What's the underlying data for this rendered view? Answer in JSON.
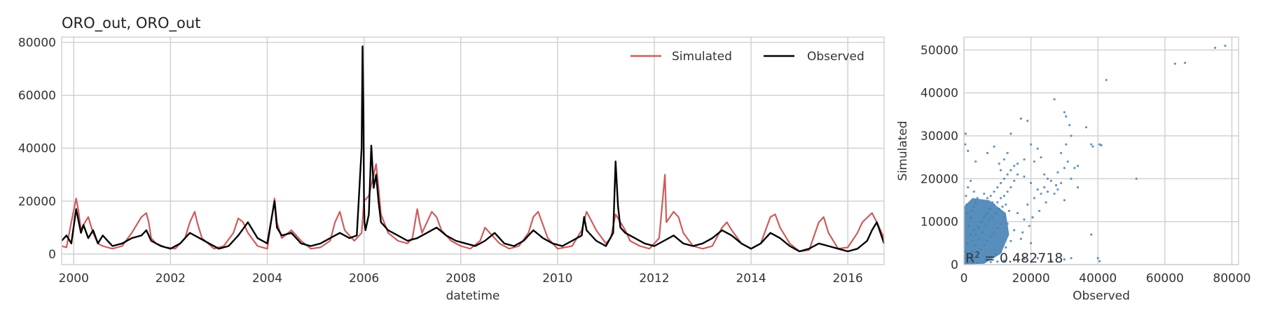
{
  "colors": {
    "simulated": "#cd5c5c",
    "observed": "#000000",
    "scatter": "#4682b4",
    "grid": "#cfcfcf"
  },
  "chart_data": [
    {
      "type": "line",
      "title": "ORO_out, ORO_out",
      "xlabel": "datetime",
      "ylabel": "",
      "xlim": [
        1999.75,
        2016.75
      ],
      "ylim": [
        -4000,
        82000
      ],
      "xticks": [
        2000,
        2002,
        2004,
        2006,
        2008,
        2010,
        2012,
        2014,
        2016
      ],
      "xtick_labels": [
        "2000",
        "2002",
        "2004",
        "2006",
        "2008",
        "2010",
        "2012",
        "2014",
        "2016"
      ],
      "yticks": [
        0,
        20000,
        40000,
        60000,
        80000
      ],
      "ytick_labels": [
        "0",
        "20000",
        "40000",
        "60000",
        "80000"
      ],
      "grid": true,
      "legend": {
        "placement": "top-right",
        "columns": 2
      },
      "series": [
        {
          "name": "Simulated",
          "x": [
            1999.75,
            1999.85,
            1999.95,
            2000.05,
            2000.1,
            2000.15,
            2000.2,
            2000.3,
            2000.4,
            2000.5,
            2000.6,
            2000.8,
            2001.0,
            2001.2,
            2001.4,
            2001.5,
            2001.55,
            2001.6,
            2001.7,
            2001.9,
            2002.1,
            2002.3,
            2002.4,
            2002.5,
            2002.55,
            2002.65,
            2002.9,
            2003.1,
            2003.3,
            2003.4,
            2003.5,
            2003.6,
            2003.8,
            2004.0,
            2004.15,
            2004.2,
            2004.3,
            2004.5,
            2004.7,
            2004.9,
            2005.1,
            2005.3,
            2005.4,
            2005.5,
            2005.6,
            2005.8,
            2005.95,
            2006.0,
            2006.1,
            2006.2,
            2006.25,
            2006.3,
            2006.35,
            2006.5,
            2006.7,
            2006.9,
            2007.0,
            2007.1,
            2007.15,
            2007.2,
            2007.4,
            2007.5,
            2007.6,
            2007.8,
            2008.0,
            2008.2,
            2008.4,
            2008.5,
            2008.6,
            2008.8,
            2009.0,
            2009.2,
            2009.4,
            2009.5,
            2009.6,
            2009.8,
            2010.0,
            2010.3,
            2010.5,
            2010.6,
            2010.8,
            2011.0,
            2011.1,
            2011.2,
            2011.3,
            2011.4,
            2011.5,
            2011.7,
            2011.9,
            2012.1,
            2012.2,
            2012.22,
            2012.25,
            2012.4,
            2012.5,
            2012.6,
            2012.8,
            2013.0,
            2013.2,
            2013.4,
            2013.5,
            2013.6,
            2013.8,
            2014.0,
            2014.2,
            2014.4,
            2014.5,
            2014.6,
            2014.8,
            2015.0,
            2015.2,
            2015.4,
            2015.5,
            2015.6,
            2015.8,
            2016.0,
            2016.2,
            2016.3,
            2016.5,
            2016.6,
            2016.75
          ],
          "values": [
            3000,
            2500,
            12000,
            21000,
            16000,
            9000,
            11000,
            14000,
            8000,
            4000,
            3000,
            2000,
            3000,
            8000,
            14000,
            15500,
            12000,
            6000,
            4000,
            2500,
            2000,
            6000,
            12000,
            16000,
            12000,
            6000,
            2000,
            3000,
            8000,
            13500,
            12000,
            8000,
            3000,
            2000,
            21000,
            12000,
            6000,
            9000,
            5000,
            2000,
            2500,
            5000,
            12000,
            16000,
            9000,
            5000,
            8000,
            20000,
            22000,
            30000,
            34000,
            25000,
            15000,
            8000,
            5000,
            4000,
            6000,
            17000,
            12000,
            8000,
            16000,
            14000,
            9000,
            5000,
            3000,
            2000,
            5000,
            10000,
            8000,
            4000,
            2000,
            3000,
            8000,
            14000,
            16000,
            6000,
            2000,
            3000,
            9000,
            16000,
            9000,
            4000,
            6000,
            15000,
            12000,
            9000,
            5000,
            3000,
            2000,
            6000,
            26000,
            30000,
            12000,
            16000,
            14000,
            8000,
            3000,
            2000,
            3000,
            10000,
            12000,
            9000,
            4000,
            2000,
            4000,
            14000,
            15000,
            10000,
            4000,
            1000,
            1500,
            12000,
            14000,
            8000,
            2000,
            2500,
            8000,
            12000,
            15500,
            12000,
            6000
          ]
        },
        {
          "name": "Observed",
          "x": [
            1999.75,
            1999.85,
            1999.95,
            2000.05,
            2000.15,
            2000.2,
            2000.3,
            2000.4,
            2000.5,
            2000.6,
            2000.8,
            2001.0,
            2001.2,
            2001.4,
            2001.5,
            2001.6,
            2001.8,
            2002.0,
            2002.2,
            2002.4,
            2002.6,
            2002.8,
            2003.0,
            2003.2,
            2003.4,
            2003.6,
            2003.8,
            2004.0,
            2004.15,
            2004.2,
            2004.3,
            2004.5,
            2004.7,
            2004.9,
            2005.1,
            2005.3,
            2005.5,
            2005.7,
            2005.85,
            2005.95,
            2005.97,
            2005.99,
            2006.0,
            2006.01,
            2006.03,
            2006.1,
            2006.15,
            2006.2,
            2006.25,
            2006.3,
            2006.35,
            2006.5,
            2006.7,
            2006.9,
            2007.1,
            2007.3,
            2007.5,
            2007.7,
            2007.9,
            2008.1,
            2008.3,
            2008.5,
            2008.7,
            2008.9,
            2009.1,
            2009.3,
            2009.5,
            2009.7,
            2009.9,
            2010.1,
            2010.3,
            2010.5,
            2010.55,
            2010.6,
            2010.8,
            2011.0,
            2011.15,
            2011.2,
            2011.25,
            2011.3,
            2011.4,
            2011.6,
            2011.8,
            2012.0,
            2012.2,
            2012.4,
            2012.6,
            2012.8,
            2013.0,
            2013.2,
            2013.4,
            2013.6,
            2013.8,
            2014.0,
            2014.2,
            2014.4,
            2014.6,
            2014.8,
            2015.0,
            2015.2,
            2015.4,
            2015.6,
            2015.8,
            2016.0,
            2016.2,
            2016.4,
            2016.5,
            2016.6,
            2016.75
          ],
          "values": [
            5000,
            7000,
            4000,
            17000,
            8000,
            11000,
            6000,
            9000,
            4000,
            7000,
            3000,
            4000,
            6000,
            7000,
            9000,
            5000,
            3000,
            2000,
            4000,
            8000,
            6000,
            4000,
            2000,
            3000,
            7000,
            12000,
            6000,
            4000,
            20000,
            10000,
            7000,
            8000,
            4000,
            3000,
            4000,
            6000,
            8000,
            6000,
            7000,
            40000,
            78500,
            50000,
            20000,
            12000,
            9000,
            15000,
            41000,
            25000,
            30000,
            20000,
            12000,
            9000,
            7000,
            5000,
            6000,
            8000,
            10000,
            7000,
            5000,
            4000,
            3000,
            5000,
            8000,
            4000,
            3000,
            5000,
            9000,
            6000,
            4000,
            3000,
            5000,
            7000,
            14000,
            9000,
            5000,
            3000,
            8000,
            35000,
            18000,
            10000,
            8000,
            6000,
            4000,
            3000,
            5000,
            7000,
            4000,
            3000,
            4000,
            6000,
            9000,
            7000,
            4000,
            2000,
            4000,
            8000,
            6000,
            3000,
            1000,
            2000,
            4000,
            3000,
            2000,
            1000,
            2000,
            5000,
            9000,
            12000,
            4000
          ]
        }
      ]
    },
    {
      "type": "scatter",
      "title": "",
      "xlabel": "Observed",
      "ylabel": "Simulated",
      "xlim": [
        0,
        82000
      ],
      "ylim": [
        0,
        53000
      ],
      "xticks": [
        0,
        20000,
        40000,
        60000,
        80000
      ],
      "xtick_labels": [
        "0",
        "20000",
        "40000",
        "60000",
        "80000"
      ],
      "yticks": [
        0,
        10000,
        20000,
        30000,
        40000,
        50000
      ],
      "ytick_labels": [
        "0",
        "10000",
        "20000",
        "30000",
        "40000",
        "50000"
      ],
      "grid": true,
      "annotation": "R$^2$ = 0.482718",
      "annotation_text": "0.482718",
      "points": [
        [
          500,
          30500
        ],
        [
          400,
          28000
        ],
        [
          1200,
          26500
        ],
        [
          3500,
          24000
        ],
        [
          7000,
          26000
        ],
        [
          9000,
          27500
        ],
        [
          10500,
          23500
        ],
        [
          11000,
          22000
        ],
        [
          12000,
          24500
        ],
        [
          13000,
          26000
        ],
        [
          14000,
          30500
        ],
        [
          17000,
          34000
        ],
        [
          19000,
          33500
        ],
        [
          20000,
          28000
        ],
        [
          22000,
          27000
        ],
        [
          23000,
          25000
        ],
        [
          27000,
          38500
        ],
        [
          30000,
          35500
        ],
        [
          30500,
          34500
        ],
        [
          31500,
          32500
        ],
        [
          30500,
          28000
        ],
        [
          32000,
          30000
        ],
        [
          29000,
          26000
        ],
        [
          31000,
          24000
        ],
        [
          30000,
          22500
        ],
        [
          33000,
          22500
        ],
        [
          34000,
          23000
        ],
        [
          28000,
          21500
        ],
        [
          25000,
          20000
        ],
        [
          24000,
          18000
        ],
        [
          22000,
          17500
        ],
        [
          20000,
          19000
        ],
        [
          18000,
          20500
        ],
        [
          16000,
          21000
        ],
        [
          15000,
          19500
        ],
        [
          14000,
          18000
        ],
        [
          13000,
          17000
        ],
        [
          12000,
          16000
        ],
        [
          11000,
          15500
        ],
        [
          10000,
          14500
        ],
        [
          9000,
          14000
        ],
        [
          8000,
          13000
        ],
        [
          7000,
          12000
        ],
        [
          6000,
          11000
        ],
        [
          5000,
          10000
        ],
        [
          4000,
          9000
        ],
        [
          3000,
          8000
        ],
        [
          2000,
          7000
        ],
        [
          1000,
          5000
        ],
        [
          500,
          3000
        ],
        [
          300,
          1500
        ],
        [
          1500,
          2000
        ],
        [
          2500,
          3000
        ],
        [
          3500,
          4500
        ],
        [
          4500,
          6000
        ],
        [
          5500,
          7500
        ],
        [
          6500,
          9000
        ],
        [
          7500,
          10500
        ],
        [
          8500,
          11000
        ],
        [
          9500,
          12000
        ],
        [
          10500,
          13000
        ],
        [
          11500,
          13500
        ],
        [
          12500,
          14000
        ],
        [
          13500,
          12500
        ],
        [
          12000,
          11000
        ],
        [
          11000,
          9500
        ],
        [
          10000,
          8500
        ],
        [
          9000,
          7500
        ],
        [
          8000,
          6500
        ],
        [
          7000,
          5500
        ],
        [
          6000,
          4500
        ],
        [
          5000,
          3500
        ],
        [
          4000,
          2500
        ],
        [
          3000,
          1500
        ],
        [
          2000,
          800
        ],
        [
          1000,
          400
        ],
        [
          2500,
          5500
        ],
        [
          3500,
          7000
        ],
        [
          4500,
          8500
        ],
        [
          5500,
          10000
        ],
        [
          6500,
          11500
        ],
        [
          7500,
          13000
        ],
        [
          8500,
          14500
        ],
        [
          1500,
          9000
        ],
        [
          2000,
          11000
        ],
        [
          2500,
          12500
        ],
        [
          3000,
          13500
        ],
        [
          3500,
          14500
        ],
        [
          4000,
          15500
        ],
        [
          1000,
          12000
        ],
        [
          800,
          14000
        ],
        [
          600,
          16000
        ],
        [
          1200,
          18000
        ],
        [
          2000,
          19500
        ],
        [
          3000,
          17000
        ],
        [
          6000,
          16500
        ],
        [
          7000,
          15500
        ],
        [
          8000,
          16000
        ],
        [
          9000,
          17000
        ],
        [
          10000,
          18000
        ],
        [
          11000,
          19000
        ],
        [
          12000,
          20000
        ],
        [
          13000,
          21000
        ],
        [
          14000,
          22000
        ],
        [
          15000,
          23000
        ],
        [
          16000,
          23500
        ],
        [
          18000,
          24500
        ],
        [
          21000,
          24000
        ],
        [
          24000,
          21000
        ],
        [
          26000,
          19500
        ],
        [
          28000,
          17500
        ],
        [
          27000,
          16500
        ],
        [
          30000,
          15000
        ],
        [
          32000,
          20000
        ],
        [
          34000,
          18000
        ],
        [
          36500,
          32000
        ],
        [
          38000,
          28000
        ],
        [
          38500,
          27500
        ],
        [
          40500,
          28000
        ],
        [
          41000,
          27800
        ],
        [
          40000,
          1500
        ],
        [
          40500,
          800
        ],
        [
          38000,
          7000
        ],
        [
          32000,
          1500
        ],
        [
          30000,
          1200
        ],
        [
          26000,
          1000
        ],
        [
          22000,
          1500
        ],
        [
          18000,
          1300
        ],
        [
          15000,
          1000
        ],
        [
          12000,
          900
        ],
        [
          10000,
          700
        ],
        [
          8000,
          600
        ],
        [
          6000,
          500
        ],
        [
          4000,
          400
        ],
        [
          51500,
          20000
        ],
        [
          42500,
          43000
        ],
        [
          63000,
          46800
        ],
        [
          66000,
          47000
        ],
        [
          75000,
          50500
        ],
        [
          78000,
          51000
        ],
        [
          20000,
          5000
        ],
        [
          17000,
          6000
        ],
        [
          15000,
          8000
        ],
        [
          13000,
          9500
        ],
        [
          18000,
          10500
        ],
        [
          16000,
          12000
        ],
        [
          19000,
          14000
        ],
        [
          21000,
          15500
        ],
        [
          23000,
          16500
        ],
        [
          25000,
          17000
        ],
        [
          27500,
          18500
        ],
        [
          29000,
          19000
        ],
        [
          24500,
          14500
        ],
        [
          22500,
          12500
        ],
        [
          20500,
          11000
        ],
        [
          19500,
          9000
        ],
        [
          17500,
          7500
        ],
        [
          14000,
          5500
        ],
        [
          12500,
          4000
        ],
        [
          11000,
          3000
        ],
        [
          9500,
          2500
        ],
        [
          8000,
          2000
        ]
      ]
    }
  ]
}
